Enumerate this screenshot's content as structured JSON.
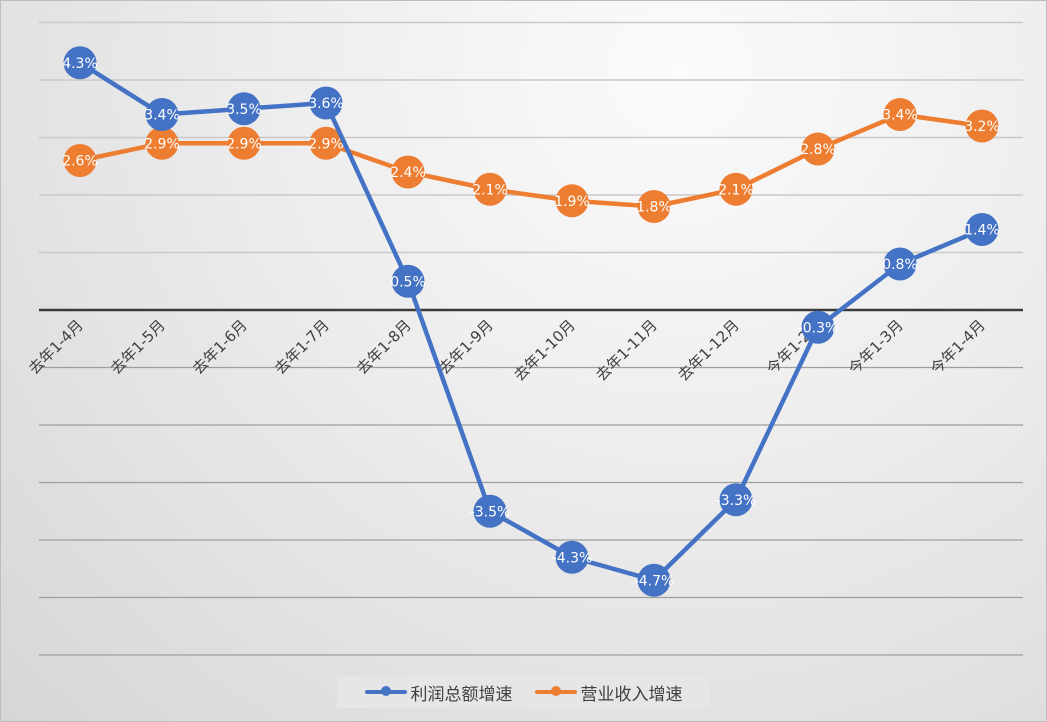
{
  "chart_data": {
    "type": "line",
    "title": "",
    "xlabel": "",
    "ylabel": "",
    "categories": [
      "去年1-4月",
      "去年1-5月",
      "去年1-6月",
      "去年1-7月",
      "去年1-8月",
      "去年1-9月",
      "去年1-10月",
      "去年1-11月",
      "去年1-12月",
      "今年1-2月",
      "今年1-3月",
      "今年1-4月"
    ],
    "series": [
      {
        "name": "利润总额增速",
        "color": "#4472c4",
        "values": [
          4.3,
          3.4,
          3.5,
          3.6,
          0.5,
          -3.5,
          -4.3,
          -4.7,
          -3.3,
          -0.3,
          0.8,
          1.4
        ],
        "labels": [
          "4.3%",
          "3.4%",
          "3.5%",
          "3.6%",
          "0.5%",
          "-3.5%",
          "-4.3%",
          "-4.7%",
          "-3.3%",
          "-0.3%",
          "0.8%",
          "1.4%"
        ]
      },
      {
        "name": "营业收入增速",
        "color": "#ed7d31",
        "values": [
          2.6,
          2.9,
          2.9,
          2.9,
          2.4,
          2.1,
          1.9,
          1.8,
          2.1,
          2.8,
          3.4,
          3.2
        ],
        "labels": [
          "2.6%",
          "2.9%",
          "2.9%",
          "2.9%",
          "2.4%",
          "2.1%",
          "1.9%",
          "1.8%",
          "2.1%",
          "2.8%",
          "3.4%",
          "3.2%"
        ]
      }
    ],
    "ylim": [
      -6,
      5
    ],
    "grid": true,
    "y_axis_labels_visible": false,
    "legend_position": "bottom"
  },
  "legend": {
    "items": [
      {
        "label": "利润总额增速",
        "color": "#4472c4"
      },
      {
        "label": "营业收入增速",
        "color": "#ed7d31"
      }
    ]
  }
}
